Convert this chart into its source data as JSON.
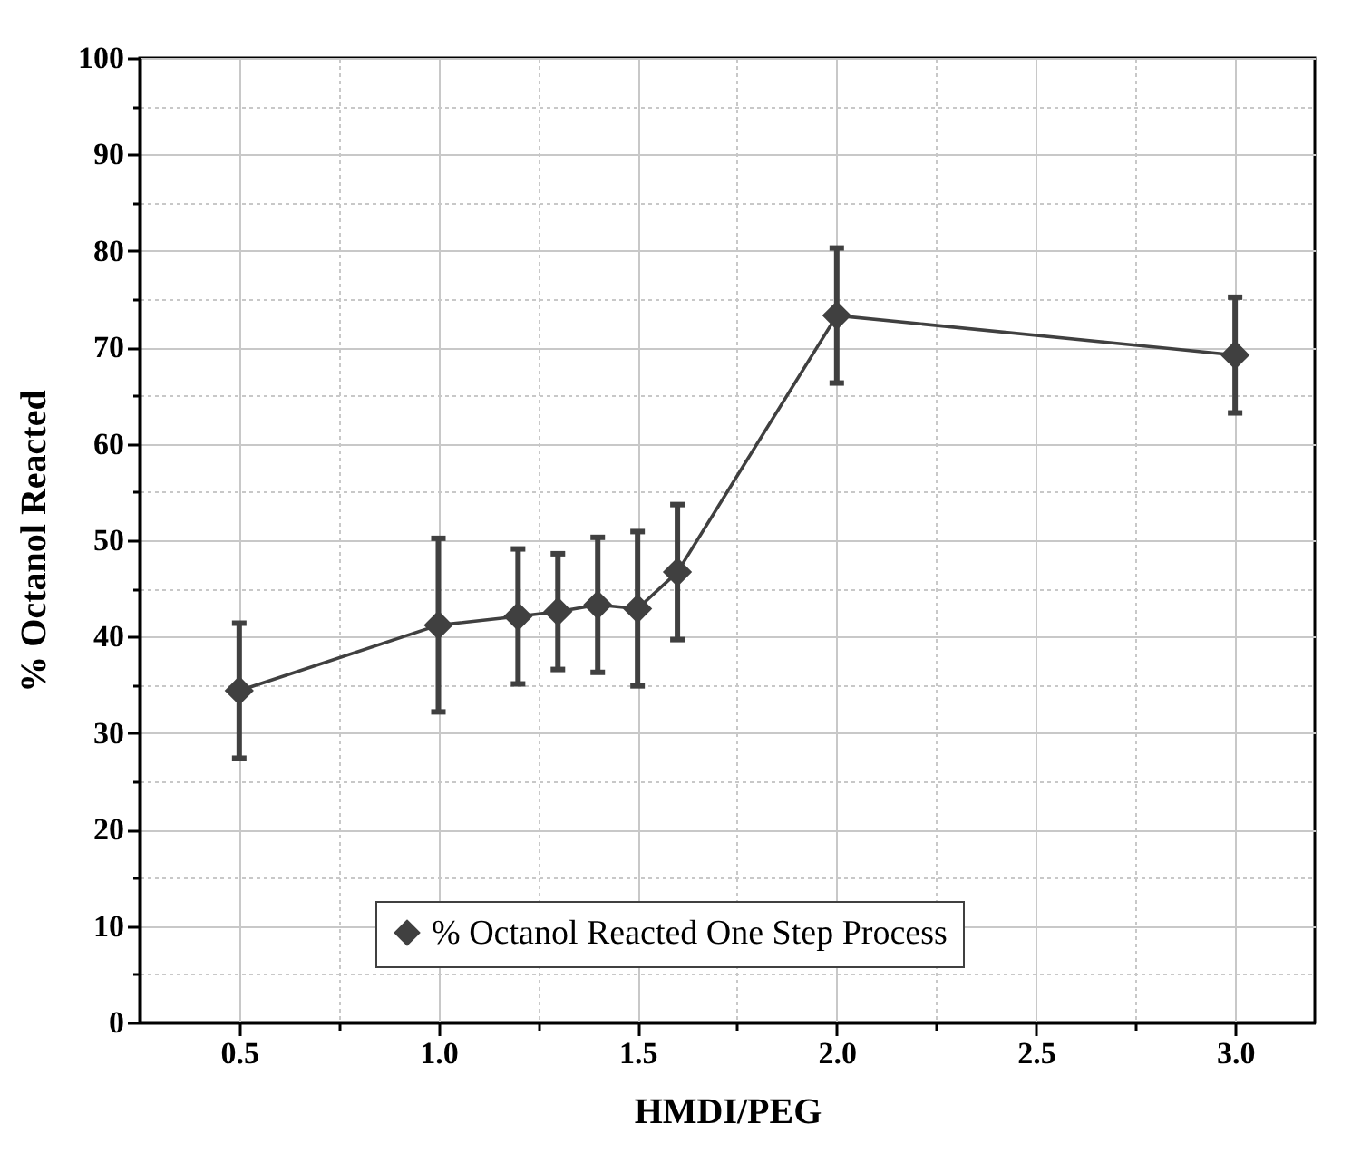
{
  "chart_data": {
    "type": "line",
    "xlabel": "HMDI/PEG",
    "ylabel": "% Octanol Reacted",
    "x": [
      0.5,
      1.0,
      1.2,
      1.3,
      1.4,
      1.5,
      1.6,
      2.0,
      3.0
    ],
    "series": [
      {
        "name": "% Octanol Reacted One Step Process",
        "color": "#404040",
        "values": [
          34.4,
          41.2,
          42.1,
          42.6,
          43.3,
          42.9,
          46.7,
          73.3,
          69.2
        ],
        "errors": [
          7,
          9,
          7,
          6,
          7,
          8,
          7,
          7,
          6
        ]
      }
    ],
    "xlim": [
      0.25,
      3.2
    ],
    "xticks": [
      {
        "value": 0.5,
        "label": "0.5"
      },
      {
        "value": 0.75,
        "label": null
      },
      {
        "value": 1,
        "label": "1.0"
      },
      {
        "value": 1.25,
        "label": null
      },
      {
        "value": 1.5,
        "label": "1.5"
      },
      {
        "value": 1.75,
        "label": null
      },
      {
        "value": 2,
        "label": "2.0"
      },
      {
        "value": 2.25,
        "label": null
      },
      {
        "value": 2.5,
        "label": "2.5"
      },
      {
        "value": 2.75,
        "label": null
      },
      {
        "value": 3,
        "label": "3.0"
      }
    ],
    "ylim": [
      0,
      100
    ],
    "yticks": [
      0,
      {
        "value": 5,
        "label": null
      },
      10,
      {
        "value": 15,
        "label": null
      },
      20,
      {
        "value": 25,
        "label": null
      },
      30,
      {
        "value": 35,
        "label": null
      },
      40,
      {
        "value": 45,
        "label": null
      },
      50,
      {
        "value": 55,
        "label": null
      },
      60,
      {
        "value": 65,
        "label": null
      },
      70,
      {
        "value": 75,
        "label": null
      },
      80,
      {
        "value": 85,
        "label": null
      },
      90,
      {
        "value": 95,
        "label": null
      },
      100
    ],
    "grid": true,
    "legend": "bottom",
    "marker": "diamond",
    "line_style": "solid"
  }
}
